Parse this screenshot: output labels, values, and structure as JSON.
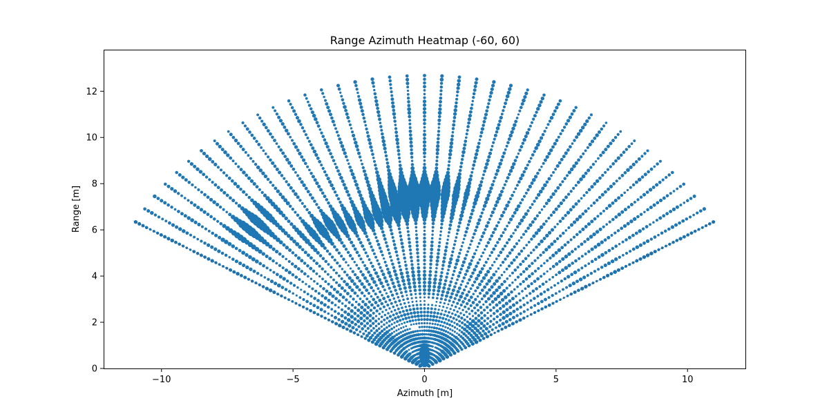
{
  "chart_data": {
    "type": "scatter",
    "title": "Range Azimuth Heatmap (-60, 60)",
    "xlabel": "Azimuth [m]",
    "ylabel": "Range [m]",
    "xlim": [
      -12.2,
      12.2
    ],
    "ylim": [
      0,
      13.8
    ],
    "xticks": [
      -10,
      -5,
      0,
      5,
      10
    ],
    "xtick_labels": [
      "−10",
      "−5",
      "0",
      "5",
      "10"
    ],
    "yticks": [
      0,
      2,
      4,
      6,
      8,
      10,
      12
    ],
    "ytick_labels": [
      "0",
      "2",
      "4",
      "6",
      "8",
      "10",
      "12"
    ],
    "grid": false,
    "marker_color": "#1f77b4",
    "angle_range_deg": [
      -60,
      60
    ],
    "max_range_m": 12.8,
    "range_step_m": 0.16,
    "beam_count": 41,
    "hotspots": [
      {
        "range": 7.6,
        "angle_deg": -2,
        "intensity": 1.0,
        "spread_r": 0.45,
        "spread_a": 8
      },
      {
        "range": 6.8,
        "angle_deg": -15,
        "intensity": 0.55,
        "spread_r": 0.3,
        "spread_a": 10
      },
      {
        "range": 8.9,
        "angle_deg": -46,
        "intensity": 0.6,
        "spread_r": 0.5,
        "spread_a": 4
      },
      {
        "range": 7.2,
        "angle_deg": -32,
        "intensity": 0.5,
        "spread_r": 0.35,
        "spread_a": 5
      },
      {
        "range": 0.5,
        "angle_deg": 0,
        "intensity": 0.7,
        "spread_r": 0.3,
        "spread_a": 6
      }
    ]
  }
}
